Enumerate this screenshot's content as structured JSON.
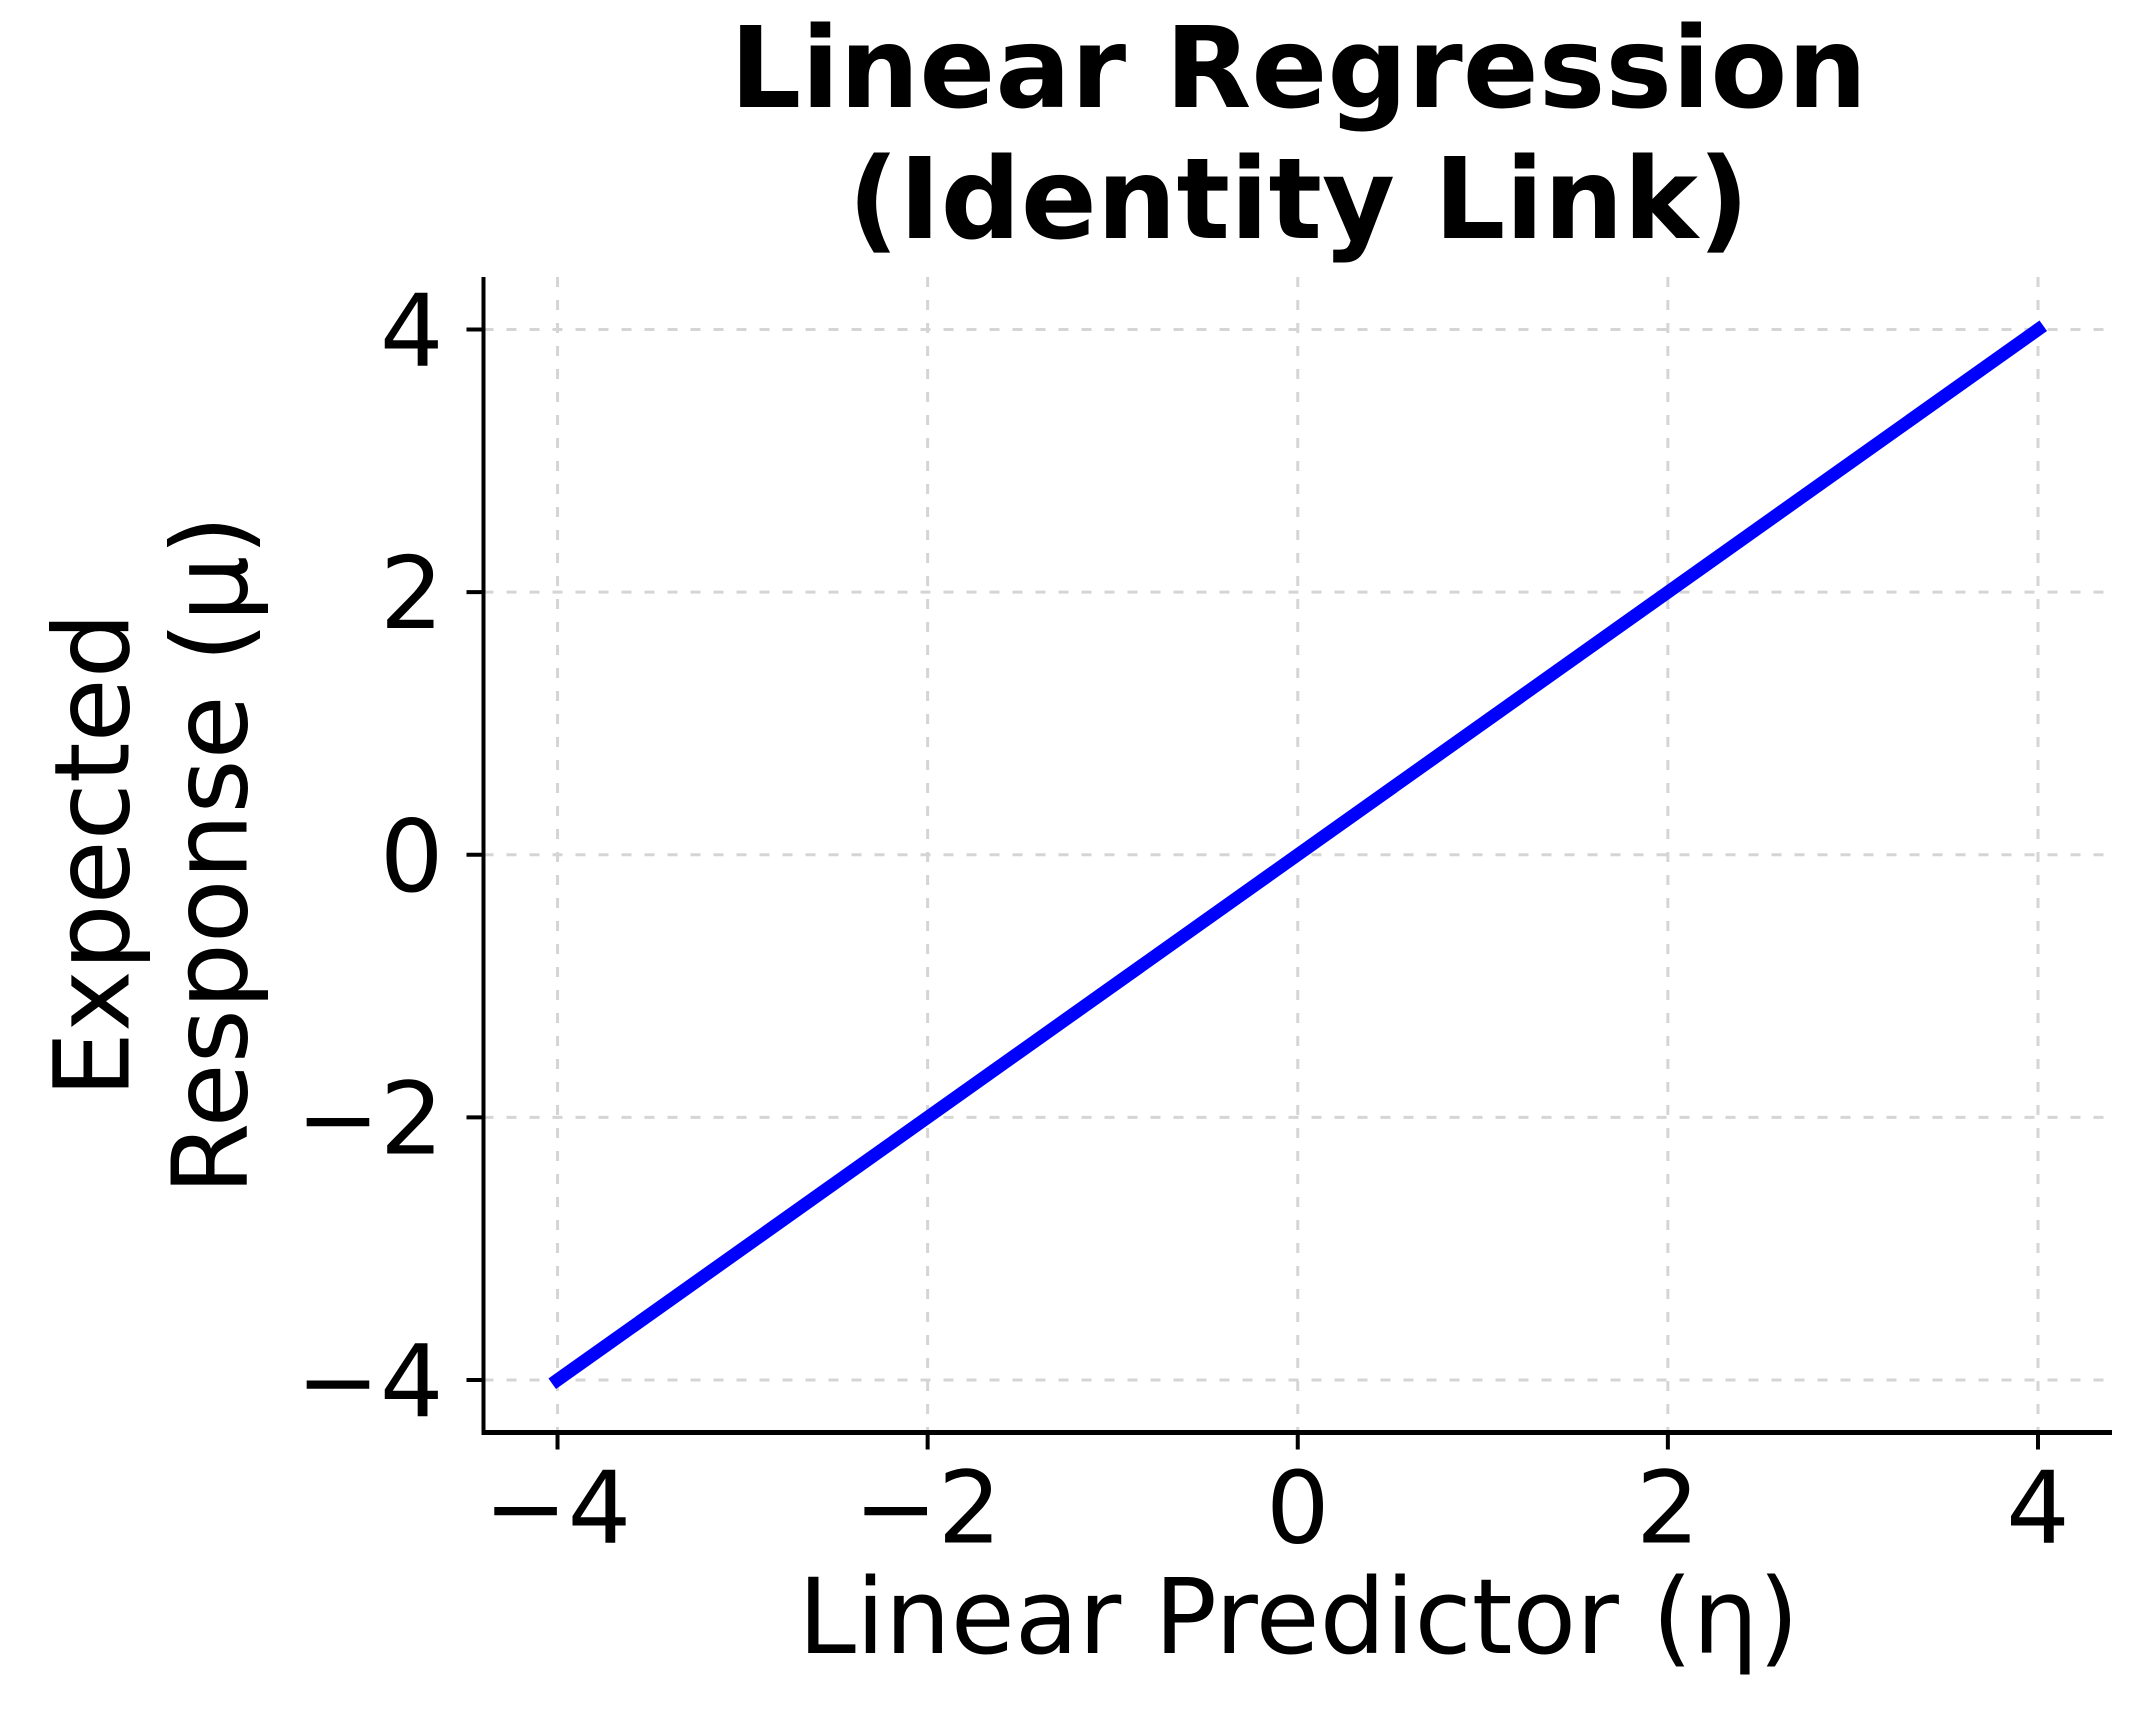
{
  "figure": {
    "title_line1": "Linear Regression",
    "title_line2": "(Identity Link)",
    "xlabel": "Linear Predictor (η)",
    "ylabel_line1": "Expected",
    "ylabel_line2": "Response (μ)"
  },
  "colors": {
    "line": "#0000ff",
    "grid": "#d5d5d5",
    "axis": "#000000",
    "text": "#000000",
    "background": "#ffffff"
  },
  "chart_data": {
    "type": "line",
    "title": "Linear Regression (Identity Link)",
    "xlabel": "Linear Predictor (η)",
    "ylabel": "Expected Response (μ)",
    "xlim": [
      -4.4,
      4.4
    ],
    "ylim": [
      -4.4,
      4.4
    ],
    "grid": true,
    "grid_style": "dashed",
    "legend": "none",
    "xticks": {
      "values": [
        -4,
        -2,
        0,
        2,
        4
      ],
      "labels": [
        "−4",
        "−2",
        "0",
        "2",
        "4"
      ]
    },
    "yticks": {
      "values": [
        -4,
        -2,
        0,
        2,
        4
      ],
      "labels": [
        "−4",
        "−2",
        "0",
        "2",
        "4"
      ]
    },
    "series": [
      {
        "name": "identity-link-line",
        "x": [
          -4,
          4
        ],
        "y": [
          -4,
          4
        ],
        "color": "#0000ff",
        "linewidth": 13
      }
    ]
  }
}
